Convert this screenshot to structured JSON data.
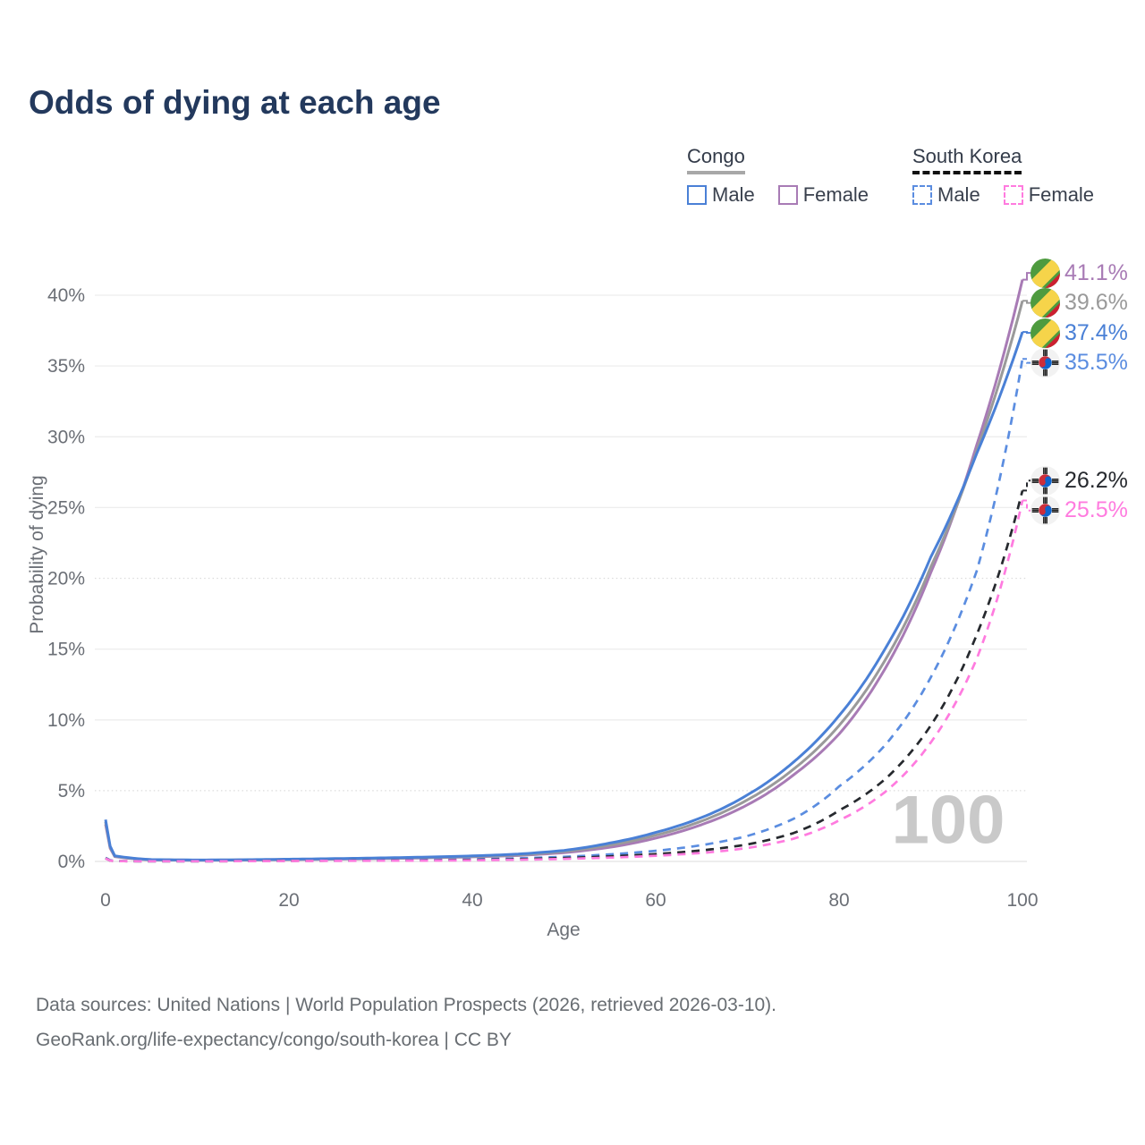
{
  "title": "Odds of dying at each age",
  "legend": {
    "groups": [
      {
        "label": "Congo",
        "underline_style": "solid",
        "underline_color": "#a8a8a8",
        "items": [
          {
            "label": "Male",
            "color": "#4a80d6",
            "dash": false
          },
          {
            "label": "Female",
            "color": "#a87bb5",
            "dash": false
          }
        ]
      },
      {
        "label": "South Korea",
        "underline_style": "dashed",
        "underline_color": "#111111",
        "items": [
          {
            "label": "Male",
            "color": "#5b8de0",
            "dash": true
          },
          {
            "label": "Female",
            "color": "#ff7bdf",
            "dash": true
          }
        ]
      }
    ]
  },
  "watermark": "100",
  "footer": {
    "line1": "Data sources: United Nations | World Population Prospects (2026, retrieved 2026-03-10).",
    "line2": "GeoRank.org/life-expectancy/congo/south-korea | CC BY"
  },
  "chart_data": {
    "type": "line",
    "title": "Odds of dying at each age",
    "xlabel": "Age",
    "ylabel": "Probability of dying",
    "xlim": [
      0,
      100
    ],
    "ylim": [
      0,
      42
    ],
    "x_ticks": [
      0,
      20,
      40,
      60,
      80,
      100
    ],
    "y_ticks": [
      0,
      5,
      10,
      15,
      20,
      25,
      30,
      35,
      40
    ],
    "y_tick_labels": [
      "0%",
      "5%",
      "10%",
      "15%",
      "20%",
      "25%",
      "30%",
      "35%",
      "40%"
    ],
    "dotted_gridlines": [
      5,
      20
    ],
    "grid": true,
    "legend_position": "top-right",
    "x": [
      0,
      1,
      5,
      10,
      15,
      20,
      25,
      30,
      35,
      40,
      45,
      50,
      55,
      60,
      65,
      70,
      75,
      80,
      85,
      90,
      95,
      100
    ],
    "series": [
      {
        "name": "Congo Female",
        "country": "Congo",
        "sex": "Female",
        "color": "#a87bb5",
        "dash": "solid",
        "flag": "congo",
        "end_label": "41.1%",
        "end_value": 41.1,
        "values": [
          2.62,
          0.34,
          0.11,
          0.08,
          0.1,
          0.13,
          0.16,
          0.2,
          0.25,
          0.32,
          0.42,
          0.62,
          1.0,
          1.65,
          2.6,
          4.0,
          6.1,
          9.0,
          13.6,
          20.4,
          29.4,
          41.1
        ]
      },
      {
        "name": "Congo Both sexes",
        "country": "Congo",
        "sex": "Both",
        "color": "#9a9a9a",
        "dash": "solid",
        "flag": "congo",
        "end_label": "39.6%",
        "end_value": 39.6,
        "values": [
          2.8,
          0.37,
          0.12,
          0.09,
          0.11,
          0.14,
          0.18,
          0.22,
          0.28,
          0.35,
          0.46,
          0.7,
          1.15,
          1.85,
          2.85,
          4.35,
          6.5,
          9.6,
          14.2,
          20.8,
          29.0,
          39.6
        ]
      },
      {
        "name": "Congo Male",
        "country": "Congo",
        "sex": "Male",
        "color": "#4a80d6",
        "dash": "solid",
        "flag": "congo",
        "end_label": "37.4%",
        "end_value": 37.4,
        "values": [
          2.95,
          0.4,
          0.13,
          0.1,
          0.12,
          0.16,
          0.2,
          0.25,
          0.31,
          0.39,
          0.52,
          0.78,
          1.3,
          2.05,
          3.1,
          4.7,
          7.0,
          10.3,
          15.0,
          21.5,
          28.8,
          37.4
        ]
      },
      {
        "name": "South Korea Male",
        "country": "South Korea",
        "sex": "Male",
        "color": "#5b8de0",
        "dash": "dashed",
        "flag": "south-korea",
        "end_label": "35.5%",
        "end_value": 35.5,
        "values": [
          0.25,
          0.03,
          0.01,
          0.01,
          0.03,
          0.05,
          0.06,
          0.08,
          0.11,
          0.15,
          0.22,
          0.33,
          0.5,
          0.75,
          1.15,
          1.8,
          3.0,
          5.3,
          8.2,
          13.0,
          20.5,
          35.5
        ]
      },
      {
        "name": "South Korea Both sexes",
        "country": "South Korea",
        "sex": "Both",
        "color": "#26292e",
        "dash": "dashed",
        "flag": "south-korea",
        "end_label": "26.2%",
        "end_value": 26.2,
        "values": [
          0.22,
          0.02,
          0.01,
          0.01,
          0.02,
          0.04,
          0.05,
          0.06,
          0.08,
          0.11,
          0.16,
          0.24,
          0.36,
          0.52,
          0.78,
          1.2,
          2.0,
          3.6,
          5.8,
          9.6,
          16.0,
          26.2
        ]
      },
      {
        "name": "South Korea Female",
        "country": "South Korea",
        "sex": "Female",
        "color": "#ff7bdf",
        "dash": "dashed",
        "flag": "south-korea",
        "end_label": "25.5%",
        "end_value": 25.5,
        "values": [
          0.2,
          0.02,
          0.01,
          0.01,
          0.02,
          0.03,
          0.04,
          0.05,
          0.06,
          0.08,
          0.12,
          0.18,
          0.27,
          0.4,
          0.6,
          0.95,
          1.6,
          2.9,
          4.9,
          8.4,
          14.3,
          25.5
        ]
      }
    ]
  }
}
